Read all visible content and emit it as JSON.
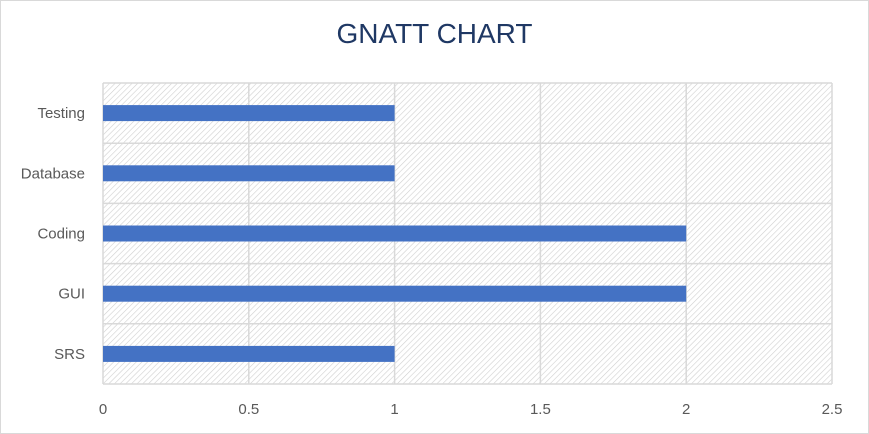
{
  "chart_data": {
    "type": "bar",
    "orientation": "horizontal",
    "title": "GNATT CHART",
    "xlabel": "",
    "ylabel": "",
    "categories": [
      "SRS",
      "GUI",
      "Coding",
      "Database",
      "Testing"
    ],
    "values": [
      1,
      2,
      2,
      1,
      1
    ],
    "xlim": [
      0,
      2.5
    ],
    "xticks": [
      "0",
      "0.5",
      "1",
      "1.5",
      "2",
      "2.5"
    ],
    "xtick_values": [
      0,
      0.5,
      1,
      1.5,
      2,
      2.5
    ],
    "grid": true,
    "legend": "none",
    "colors": {
      "bar": "#4472c4",
      "grid": "#d9d9d9",
      "title": "#1f3864",
      "plot_hatch": "#c8c8c8"
    }
  }
}
